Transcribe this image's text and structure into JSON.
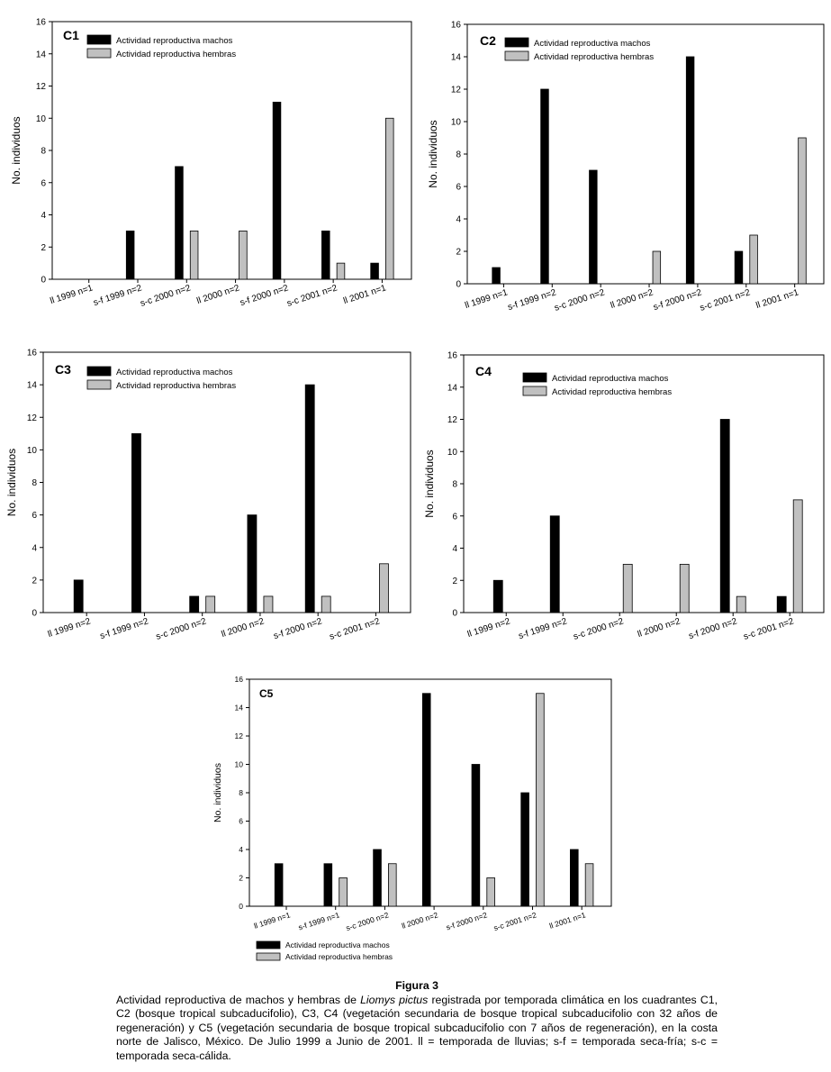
{
  "colors": {
    "machos": "#000000",
    "hembras": "#c0c0c0",
    "axis": "#000000"
  },
  "chart_data": [
    {
      "id": "C1",
      "type": "bar",
      "title": "C1",
      "ylabel": "No. individuos",
      "xlabel": "",
      "ylim": [
        0,
        16
      ],
      "yticks": [
        0,
        2,
        4,
        6,
        8,
        10,
        12,
        14,
        16
      ],
      "categories": [
        "ll 1999 n=1",
        "s-f 1999 n=2",
        "s-c 2000 n=2",
        "ll 2000 n=2",
        "s-f 2000 n=2",
        "s-c 2001 n=2",
        "ll 2001 n=1"
      ],
      "series": [
        {
          "name": "Actividad reproductiva machos",
          "values": [
            0,
            3,
            7,
            0,
            11,
            3,
            1
          ]
        },
        {
          "name": "Actividad reproductiva hembras",
          "values": [
            0,
            0,
            3,
            3,
            0,
            1,
            10
          ]
        }
      ],
      "legend": "top-left",
      "grid": false
    },
    {
      "id": "C2",
      "type": "bar",
      "title": "C2",
      "ylabel": "No. individuos",
      "xlabel": "",
      "ylim": [
        0,
        16
      ],
      "yticks": [
        0,
        2,
        4,
        6,
        8,
        10,
        12,
        14,
        16
      ],
      "categories": [
        "ll 1999 n=1",
        "s-f 1999 n=2",
        "s-c 2000 n=2",
        "ll 2000 n=2",
        "s-f 2000 n=2",
        "s-c 2001 n=2",
        "ll 2001 n=1"
      ],
      "series": [
        {
          "name": "Actividad reproductiva machos",
          "values": [
            1,
            12,
            7,
            0,
            14,
            2,
            0
          ]
        },
        {
          "name": "Actividad reproductiva hembras",
          "values": [
            0,
            0,
            0,
            2,
            0,
            3,
            9
          ]
        }
      ],
      "legend": "top-left",
      "grid": false
    },
    {
      "id": "C3",
      "type": "bar",
      "title": "C3",
      "ylabel": "No. individuos",
      "xlabel": "",
      "ylim": [
        0,
        16
      ],
      "yticks": [
        0,
        2,
        4,
        6,
        8,
        10,
        12,
        14,
        16
      ],
      "categories": [
        "ll 1999 n=2",
        "s-f 1999 n=2",
        "s-c 2000 n=2",
        "ll 2000 n=2",
        "s-f 2000 n=2",
        "s-c 2001 n=2"
      ],
      "series": [
        {
          "name": "Actividad reproductiva machos",
          "values": [
            2,
            11,
            1,
            6,
            14,
            0
          ]
        },
        {
          "name": "Actividad reproductiva hembras",
          "values": [
            0,
            0,
            1,
            1,
            1,
            3
          ]
        }
      ],
      "legend": "top-left",
      "grid": false
    },
    {
      "id": "C4",
      "type": "bar",
      "title": "C4",
      "ylabel": "No. individuos",
      "xlabel": "",
      "ylim": [
        0,
        16
      ],
      "yticks": [
        0,
        2,
        4,
        6,
        8,
        10,
        12,
        14,
        16
      ],
      "categories": [
        "ll 1999 n=2",
        "s-f 1999 n=2",
        "s-c 2000 n=2",
        "ll 2000 n=2",
        "s-f 2000 n=2",
        "s-c 2001 n=2"
      ],
      "series": [
        {
          "name": "Actividad reproductiva machos",
          "values": [
            2,
            6,
            0,
            0,
            12,
            1
          ]
        },
        {
          "name": "Actividad reproductiva hembras",
          "values": [
            0,
            0,
            3,
            3,
            1,
            7
          ]
        }
      ],
      "legend": "top-left",
      "grid": false
    },
    {
      "id": "C5",
      "type": "bar",
      "title": "C5",
      "ylabel": "No. individuos",
      "xlabel": "",
      "ylim": [
        0,
        16
      ],
      "yticks": [
        0,
        2,
        4,
        6,
        8,
        10,
        12,
        14,
        16
      ],
      "categories": [
        "ll 1999 n=1",
        "s-f 1999 n=1",
        "s-c 2000 n=2",
        "ll 2000 n=2",
        "s-f 2000 n=2",
        "s-c 2001 n=2",
        "ll 2001 n=1"
      ],
      "series": [
        {
          "name": "Actividad reproductiva machos",
          "values": [
            3,
            3,
            4,
            15,
            10,
            8,
            4
          ]
        },
        {
          "name": "Actividad reproductiva hembras",
          "values": [
            0,
            2,
            3,
            0,
            2,
            15,
            3
          ]
        }
      ],
      "legend": "bottom-outside",
      "grid": false
    }
  ],
  "caption": {
    "title": "Figura 3",
    "text_before": "Actividad reproductiva de machos y hembras de ",
    "species": "Liomys pictus",
    "text_after": " registrada por temporada climática en los cuadrantes C1, C2 (bosque tropical subcaducifolio), C3, C4 (vegetación secundaria de bosque tropical subcaducifolio con 32 años de regeneración) y C5 (vegetación secundaria de bosque tropical subcaducifolio con 7 años de regeneración), en la costa norte de Jalisco, México. De Julio 1999 a Junio de 2001. ll = temporada de lluvias; s-f = temporada seca-fría; s-c = temporada seca-cálida."
  }
}
